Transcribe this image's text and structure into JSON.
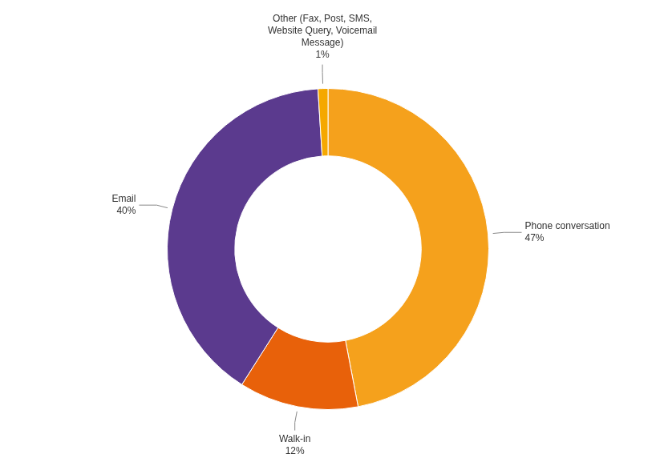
{
  "chart_data": {
    "type": "doughnut",
    "categories": [
      "Phone conversation",
      "Walk-in",
      "Email",
      "Other (Fax, Post, SMS,\nWebsite Query, Voicemail\nMessage)"
    ],
    "values": [
      47,
      12,
      40,
      1
    ],
    "value_labels": [
      "47%",
      "12%",
      "40%",
      "1%"
    ],
    "data_labels": true,
    "colors": [
      "#F5A11C",
      "#E8610A",
      "#5B3A8E",
      "#F5A800"
    ]
  }
}
